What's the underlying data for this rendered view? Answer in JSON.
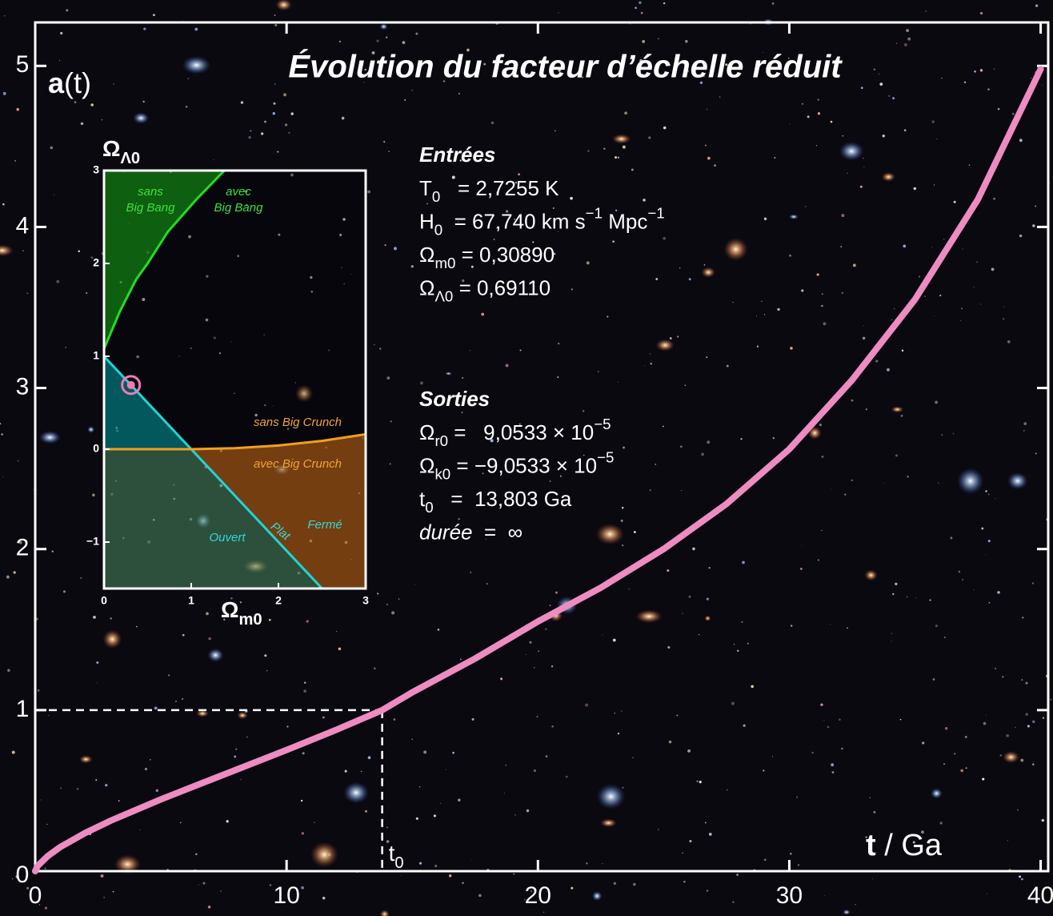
{
  "chart_data": [
    {
      "type": "line",
      "title": "Évolution du facteur d’échelle réduit",
      "y_label": [
        {
          "text": "a",
          "style": "bold"
        },
        {
          "text": "(t)"
        }
      ],
      "x_label": [
        {
          "text": "t",
          "style": "bold"
        },
        {
          "text": " / Ga"
        }
      ],
      "x": [
        0,
        0.1,
        0.5,
        1,
        2,
        3,
        5,
        7,
        10,
        12,
        13.803,
        15,
        17.5,
        20,
        22.5,
        25,
        27.5,
        30,
        32.5,
        35,
        37.5,
        40
      ],
      "series": [
        {
          "color": "#ee8cc2",
          "values": [
            0,
            0.033,
            0.094,
            0.15,
            0.238,
            0.313,
            0.446,
            0.569,
            0.752,
            0.879,
            1.0,
            1.11,
            1.32,
            1.55,
            1.76,
            2.0,
            2.28,
            2.62,
            3.05,
            3.55,
            4.17,
            4.98
          ]
        }
      ],
      "xlim": [
        0,
        40.3
      ],
      "ylim": [
        0,
        5.27
      ],
      "xticks": [
        0,
        10,
        20,
        30,
        40
      ],
      "yticks": [
        0,
        1,
        2,
        3,
        4,
        5
      ],
      "reference": {
        "x": 13.803,
        "y": 1,
        "label": [
          {
            "text": "t"
          },
          {
            "text": "0",
            "style": "sub"
          }
        ]
      }
    },
    {
      "type": "regions",
      "x_label": [
        {
          "text": "Ω"
        },
        {
          "text": "m0",
          "style": "sub"
        }
      ],
      "y_label": [
        {
          "text": "Ω"
        },
        {
          "text": "Λ0",
          "style": "sub"
        }
      ],
      "xlim": [
        0,
        3
      ],
      "ylim": [
        -1.5,
        3
      ],
      "xticks": [
        0,
        1,
        2,
        3
      ],
      "yticks": [
        {
          "value": -1,
          "label": "−1"
        },
        0,
        1,
        2,
        3
      ],
      "series": [
        {
          "color": "#22dd22",
          "x": [
            0,
            0.18,
            0.37,
            0.5,
            0.73,
            1.06,
            1.38
          ],
          "values": [
            1.08,
            1.48,
            1.83,
            2.0,
            2.34,
            2.69,
            3.0
          ]
        },
        {
          "color": "#22d4d4",
          "x": [
            0,
            1,
            2.5
          ],
          "values": [
            1,
            0,
            -1.5
          ]
        },
        {
          "color": "#f0a020",
          "x": [
            0,
            1,
            1.5,
            2,
            2.5,
            3
          ],
          "values": [
            0,
            0,
            0.01,
            0.04,
            0.09,
            0.16
          ]
        }
      ],
      "point": {
        "x": 0.3089,
        "y": 0.6911,
        "color": "#f07ab4"
      },
      "region_labels": [
        [
          "sans",
          "Big Bang"
        ],
        [
          "avec",
          "Big Bang"
        ],
        [
          "sans Big Crunch"
        ],
        [
          "avec Big Crunch"
        ],
        [
          "Ouvert"
        ],
        [
          "Plat"
        ],
        [
          "Fermé"
        ]
      ]
    }
  ],
  "inputs": {
    "title": "Entrées",
    "lines": [
      [
        {
          "text": "T"
        },
        {
          "text": "0",
          "style": "sub"
        },
        {
          "text": "   = 2,7255 K"
        }
      ],
      [
        {
          "text": "H"
        },
        {
          "text": "0",
          "style": "sub"
        },
        {
          "text": "  = 67,740 km s"
        },
        {
          "text": "−1",
          "style": "sup"
        },
        {
          "text": " Mpc"
        },
        {
          "text": "−1",
          "style": "sup"
        }
      ],
      [
        {
          "text": "Ω"
        },
        {
          "text": "m0",
          "style": "sub"
        },
        {
          "text": " = 0,30890"
        }
      ],
      [
        {
          "text": "Ω"
        },
        {
          "text": "Λ0",
          "style": "sub"
        },
        {
          "text": " = 0,69110"
        }
      ]
    ]
  },
  "outputs": {
    "title": "Sorties",
    "lines": [
      [
        {
          "text": "Ω"
        },
        {
          "text": "r0",
          "style": "sub"
        },
        {
          "text": " =   9,0533 × 10"
        },
        {
          "text": "−5",
          "style": "sup"
        }
      ],
      [
        {
          "text": "Ω"
        },
        {
          "text": "k0",
          "style": "sub"
        },
        {
          "text": " = −9,0533 × 10"
        },
        {
          "text": "−5",
          "style": "sup"
        }
      ],
      [
        {
          "text": "t"
        },
        {
          "text": "0",
          "style": "sub"
        },
        {
          "text": "   =  13,803 Ga"
        }
      ],
      [
        {
          "text": "durée",
          "style": "italic"
        },
        {
          "text": "  =  ∞"
        }
      ]
    ]
  }
}
